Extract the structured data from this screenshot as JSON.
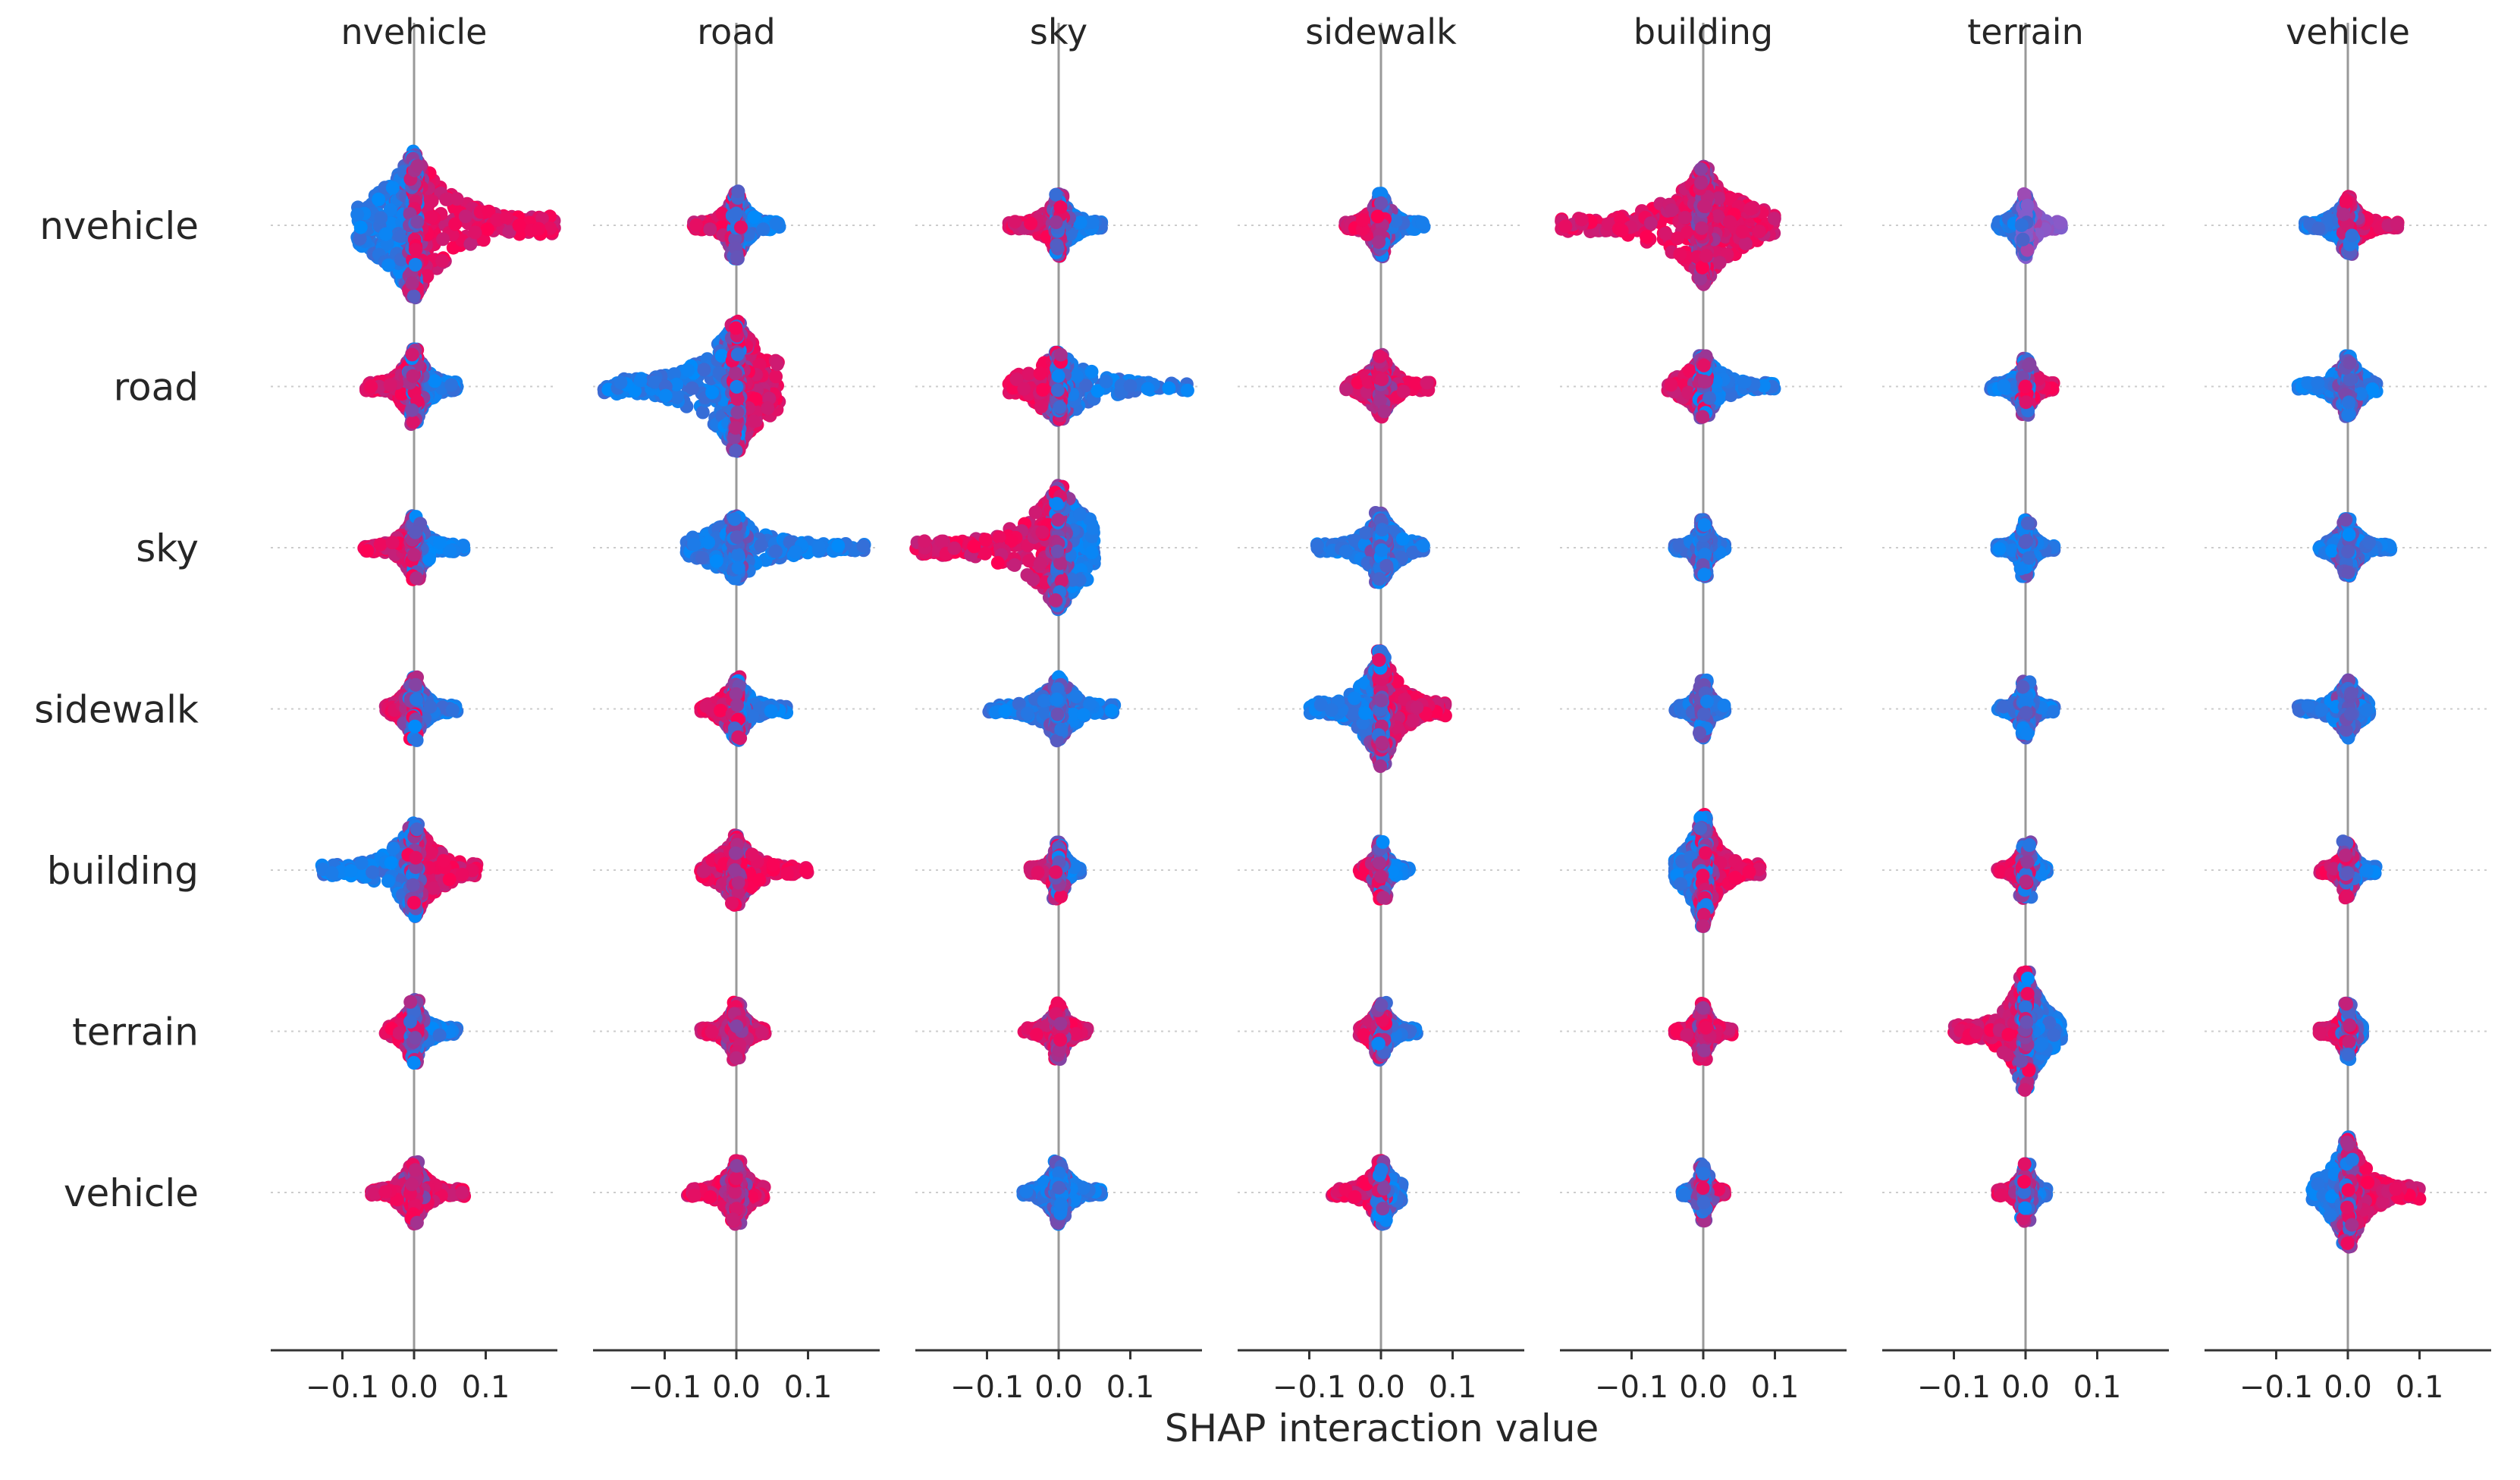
{
  "chart_data": {
    "type": "scatter",
    "subtype": "shap-interaction-summary",
    "xlabel": "SHAP interaction value",
    "features": [
      "nvehicle",
      "road",
      "sky",
      "sidewalk",
      "building",
      "terrain",
      "vehicle"
    ],
    "column_titles": [
      "nvehicle",
      "road",
      "sky",
      "sidewalk",
      "building",
      "terrain",
      "vehicle"
    ],
    "row_labels": [
      "nvehicle",
      "road",
      "sky",
      "sidewalk",
      "building",
      "terrain",
      "vehicle"
    ],
    "xlim": [
      -0.2,
      0.2
    ],
    "x_ticks": [
      -0.1,
      0.0,
      0.1
    ],
    "x_tick_labels": [
      "−0.1",
      "0.0",
      "0.1"
    ],
    "grid": false,
    "colors": {
      "low": "#008bfb",
      "high": "#ff0052",
      "mid": "#8a5ac8",
      "axis": "#333333",
      "zero_line": "#999999",
      "row_grid": "#cccccc"
    },
    "color_meaning": "feature value (blue = low, red = high)",
    "cells": [
      [
        {
          "min": -0.08,
          "max": 0.2,
          "neg": "low",
          "pos": "high",
          "spread": 1.0
        },
        {
          "min": -0.06,
          "max": 0.06,
          "neg": "high",
          "pos": "low",
          "spread": 0.35
        },
        {
          "min": -0.07,
          "max": 0.06,
          "neg": "high",
          "pos": "low",
          "spread": 0.3
        },
        {
          "min": -0.05,
          "max": 0.06,
          "neg": "high",
          "pos": "low",
          "spread": 0.3
        },
        {
          "min": -0.2,
          "max": 0.1,
          "neg": "high",
          "pos": "high",
          "spread": 0.75
        },
        {
          "min": -0.04,
          "max": 0.05,
          "neg": "low",
          "pos": "mid",
          "spread": 0.3
        },
        {
          "min": -0.06,
          "max": 0.07,
          "neg": "low",
          "pos": "high",
          "spread": 0.25
        }
      ],
      [
        {
          "min": -0.07,
          "max": 0.06,
          "neg": "high",
          "pos": "low",
          "spread": 0.4
        },
        {
          "min": -0.19,
          "max": 0.06,
          "neg": "low",
          "pos": "high",
          "spread": 0.85
        },
        {
          "min": -0.07,
          "max": 0.18,
          "neg": "high",
          "pos": "low",
          "spread": 0.35
        },
        {
          "min": -0.05,
          "max": 0.07,
          "neg": "high",
          "pos": "high",
          "spread": 0.3
        },
        {
          "min": -0.05,
          "max": 0.1,
          "neg": "high",
          "pos": "low",
          "spread": 0.3
        },
        {
          "min": -0.05,
          "max": 0.04,
          "neg": "low",
          "pos": "high",
          "spread": 0.25
        },
        {
          "min": -0.07,
          "max": 0.04,
          "neg": "low",
          "pos": "low",
          "spread": 0.3
        }
      ],
      [
        {
          "min": -0.07,
          "max": 0.07,
          "neg": "high",
          "pos": "low",
          "spread": 0.3
        },
        {
          "min": -0.07,
          "max": 0.18,
          "neg": "low",
          "pos": "low",
          "spread": 0.3
        },
        {
          "min": -0.2,
          "max": 0.05,
          "neg": "high",
          "pos": "low",
          "spread": 0.8
        },
        {
          "min": -0.09,
          "max": 0.06,
          "neg": "low",
          "pos": "low",
          "spread": 0.35
        },
        {
          "min": -0.04,
          "max": 0.03,
          "neg": "low",
          "pos": "low",
          "spread": 0.25
        },
        {
          "min": -0.04,
          "max": 0.04,
          "neg": "low",
          "pos": "low",
          "spread": 0.25
        },
        {
          "min": -0.04,
          "max": 0.06,
          "neg": "low",
          "pos": "low",
          "spread": 0.25
        }
      ],
      [
        {
          "min": -0.04,
          "max": 0.06,
          "neg": "high",
          "pos": "low",
          "spread": 0.3
        },
        {
          "min": -0.05,
          "max": 0.07,
          "neg": "high",
          "pos": "low",
          "spread": 0.3
        },
        {
          "min": -0.1,
          "max": 0.08,
          "neg": "low",
          "pos": "low",
          "spread": 0.3
        },
        {
          "min": -0.1,
          "max": 0.09,
          "neg": "low",
          "pos": "high",
          "spread": 0.75
        },
        {
          "min": -0.04,
          "max": 0.03,
          "neg": "low",
          "pos": "low",
          "spread": 0.25
        },
        {
          "min": -0.04,
          "max": 0.04,
          "neg": "low",
          "pos": "low",
          "spread": 0.25
        },
        {
          "min": -0.07,
          "max": 0.03,
          "neg": "low",
          "pos": "low",
          "spread": 0.25
        }
      ],
      [
        {
          "min": -0.13,
          "max": 0.09,
          "neg": "low",
          "pos": "high",
          "spread": 0.55
        },
        {
          "min": -0.05,
          "max": 0.1,
          "neg": "high",
          "pos": "high",
          "spread": 0.35
        },
        {
          "min": -0.04,
          "max": 0.03,
          "neg": "high",
          "pos": "low",
          "spread": 0.25
        },
        {
          "min": -0.03,
          "max": 0.04,
          "neg": "high",
          "pos": "low",
          "spread": 0.25
        },
        {
          "min": -0.04,
          "max": 0.08,
          "neg": "low",
          "pos": "high",
          "spread": 0.7
        },
        {
          "min": -0.04,
          "max": 0.03,
          "neg": "high",
          "pos": "low",
          "spread": 0.25
        },
        {
          "min": -0.04,
          "max": 0.04,
          "neg": "high",
          "pos": "low",
          "spread": 0.25
        }
      ],
      [
        {
          "min": -0.04,
          "max": 0.06,
          "neg": "high",
          "pos": "low",
          "spread": 0.3
        },
        {
          "min": -0.05,
          "max": 0.04,
          "neg": "high",
          "pos": "high",
          "spread": 0.25
        },
        {
          "min": -0.05,
          "max": 0.04,
          "neg": "high",
          "pos": "high",
          "spread": 0.25
        },
        {
          "min": -0.03,
          "max": 0.05,
          "neg": "high",
          "pos": "low",
          "spread": 0.25
        },
        {
          "min": -0.04,
          "max": 0.04,
          "neg": "high",
          "pos": "high",
          "spread": 0.25
        },
        {
          "min": -0.1,
          "max": 0.05,
          "neg": "high",
          "pos": "low",
          "spread": 0.75
        },
        {
          "min": -0.04,
          "max": 0.02,
          "neg": "high",
          "pos": "low",
          "spread": 0.25
        }
      ],
      [
        {
          "min": -0.06,
          "max": 0.07,
          "neg": "high",
          "pos": "high",
          "spread": 0.3
        },
        {
          "min": -0.07,
          "max": 0.04,
          "neg": "high",
          "pos": "high",
          "spread": 0.3
        },
        {
          "min": -0.05,
          "max": 0.06,
          "neg": "low",
          "pos": "low",
          "spread": 0.3
        },
        {
          "min": -0.07,
          "max": 0.03,
          "neg": "high",
          "pos": "low",
          "spread": 0.3
        },
        {
          "min": -0.03,
          "max": 0.03,
          "neg": "low",
          "pos": "high",
          "spread": 0.25
        },
        {
          "min": -0.04,
          "max": 0.03,
          "neg": "high",
          "pos": "low",
          "spread": 0.25
        },
        {
          "min": -0.05,
          "max": 0.1,
          "neg": "low",
          "pos": "high",
          "spread": 0.7
        }
      ]
    ]
  }
}
